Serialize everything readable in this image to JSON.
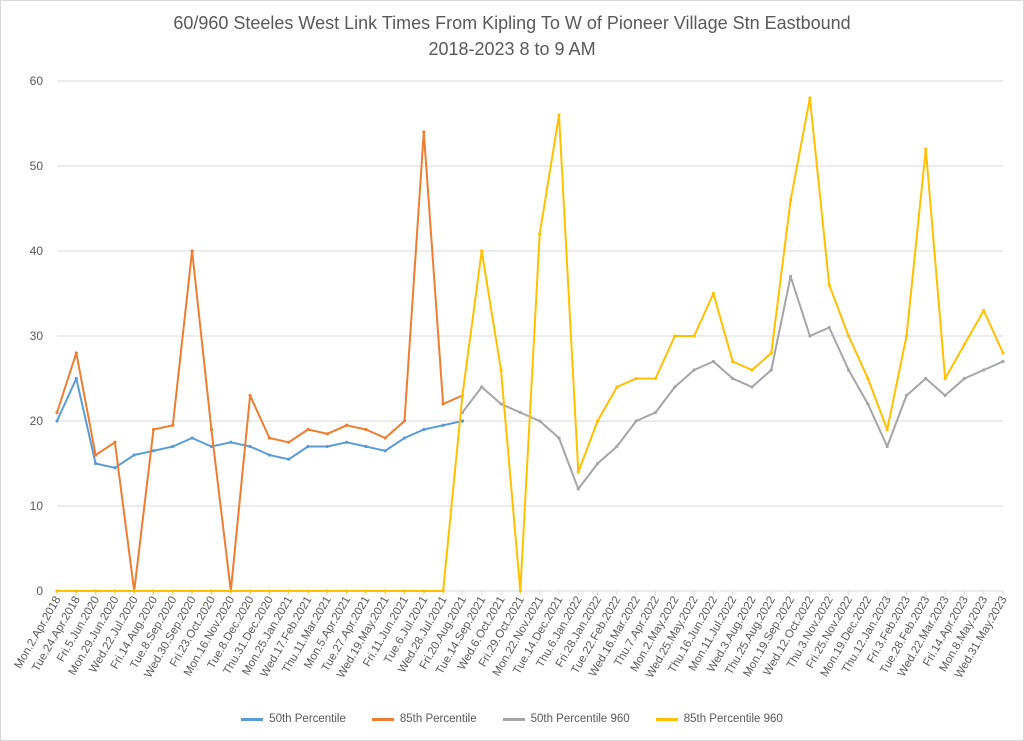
{
  "colors": {
    "p50": "#5b9bd5",
    "p85": "#ed7d31",
    "p50_960": "#a5a5a5",
    "p85_960": "#ffc000",
    "grid": "#d9d9d9",
    "text": "#595959"
  },
  "chart_data": {
    "type": "line",
    "title": "60/960 Steeles West Link Times From Kipling To W of Pioneer Village Stn Eastbound",
    "subtitle": "2018-2023 8 to 9 AM",
    "xlabel": "",
    "ylabel": "",
    "ylim": [
      0,
      60
    ],
    "yticks": [
      0,
      10,
      20,
      30,
      40,
      50,
      60
    ],
    "grid": true,
    "legend_position": "bottom",
    "categories": [
      "Mon.2.Apr.2018",
      "Tue.24.Apr.2018",
      "Fri.5.Jun.2020",
      "Mon.29.Jun.2020",
      "Wed.22.Jul.2020",
      "Fri.14.Aug.2020",
      "Tue.8.Sep.2020",
      "Wed.30.Sep.2020",
      "Fri.23.Oct.2020",
      "Mon.16.Nov.2020",
      "Tue.8.Dec.2020",
      "Thu.31.Dec.2020",
      "Mon.25.Jan.2021",
      "Wed.17.Feb.2021",
      "Thu.11.Mar.2021",
      "Mon.5.Apr.2021",
      "Tue.27.Apr.2021",
      "Wed.19.May.2021",
      "Fri.11.Jun.2021",
      "Tue.6.Jul.2021",
      "Wed.28.Jul.2021",
      "Fri.20.Aug.2021",
      "Tue.14.Sep.2021",
      "Wed.6.Oct.2021",
      "Fri.29.Oct.2021",
      "Mon.22.Nov.2021",
      "Tue.14.Dec.2021",
      "Thu.6.Jan.2022",
      "Fri.28.Jan.2022",
      "Tue.22.Feb.2022",
      "Wed.16.Mar.2022",
      "Thu.7.Apr.2022",
      "Mon.2.May.2022",
      "Wed.25.May.2022",
      "Thu.16.Jun.2022",
      "Mon.11.Jul.2022",
      "Wed.3.Aug.2022",
      "Thu.25.Aug.2022",
      "Mon.19.Sep.2022",
      "Wed.12.Oct.2022",
      "Thu.3.Nov.2022",
      "Fri.25.Nov.2022",
      "Mon.19.Dec.2022",
      "Thu.12.Jan.2023",
      "Fri.3.Feb.2023",
      "Tue.28.Feb.2023",
      "Wed.22.Mar.2023",
      "Fri.14.Apr.2023",
      "Mon.8.May.2023",
      "Wed.31.May.2023"
    ],
    "series": [
      {
        "name": "50th Percentile",
        "color_key": "p50",
        "values": [
          20,
          25,
          15,
          14.5,
          16,
          16.5,
          17,
          18,
          17,
          17.5,
          17,
          16,
          15.5,
          17,
          17,
          17.5,
          17,
          16.5,
          18,
          19,
          19.5,
          20,
          null,
          null,
          null,
          null,
          null,
          null,
          null,
          null,
          null,
          null,
          null,
          null,
          null,
          null,
          null,
          null,
          null,
          null,
          null,
          null,
          null,
          null,
          null,
          null,
          null,
          null,
          null,
          null
        ]
      },
      {
        "name": "85th Percentile",
        "color_key": "p85",
        "values": [
          21,
          28,
          16,
          17.5,
          0,
          19,
          19.5,
          40,
          19,
          0,
          23,
          18,
          17.5,
          19,
          18.5,
          19.5,
          19,
          18,
          20,
          54,
          22,
          23,
          null,
          null,
          null,
          null,
          null,
          null,
          null,
          null,
          null,
          null,
          null,
          null,
          null,
          null,
          null,
          null,
          null,
          null,
          null,
          null,
          null,
          null,
          null,
          null,
          null,
          null,
          null,
          null
        ]
      },
      {
        "name": "50th Percentile 960",
        "color_key": "p50_960",
        "values": [
          null,
          null,
          null,
          null,
          null,
          null,
          null,
          null,
          null,
          null,
          null,
          null,
          null,
          null,
          null,
          null,
          null,
          null,
          null,
          null,
          null,
          21,
          24,
          22,
          21,
          20,
          18,
          12,
          15,
          17,
          20,
          21,
          24,
          26,
          27,
          25,
          24,
          26,
          37,
          30,
          31,
          26,
          22,
          17,
          23,
          25,
          23,
          25,
          26,
          27
        ]
      },
      {
        "name": "85th Percentile 960",
        "color_key": "p85_960",
        "values": [
          0,
          0,
          0,
          0,
          0,
          0,
          0,
          0,
          0,
          0,
          0,
          0,
          0,
          0,
          0,
          0,
          0,
          0,
          0,
          0,
          0,
          23,
          40,
          26,
          0,
          42,
          56,
          14,
          20,
          24,
          25,
          25,
          30,
          30,
          35,
          27,
          26,
          28,
          46,
          58,
          36,
          30,
          25,
          19,
          30,
          52,
          25,
          29,
          33,
          28
        ]
      }
    ]
  }
}
